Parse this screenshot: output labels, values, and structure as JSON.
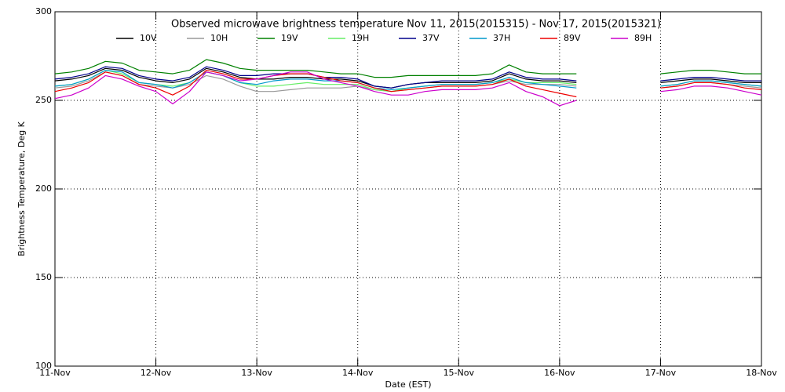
{
  "chart_data": {
    "type": "line",
    "title": "Observed microwave brightness temperature Nov 11, 2015(2015315) - Nov 17, 2015(2015321)",
    "x_label": "Date (EST)",
    "y_label": "Brightness Temperature, Deg K",
    "x": [
      "2015-11-11T00:00",
      "2015-11-11T04:00",
      "2015-11-11T08:00",
      "2015-11-11T12:00",
      "2015-11-11T16:00",
      "2015-11-11T20:00",
      "2015-11-12T00:00",
      "2015-11-12T04:00",
      "2015-11-12T08:00",
      "2015-11-12T12:00",
      "2015-11-12T16:00",
      "2015-11-12T20:00",
      "2015-11-13T00:00",
      "2015-11-13T04:00",
      "2015-11-13T08:00",
      "2015-11-13T12:00",
      "2015-11-13T16:00",
      "2015-11-13T20:00",
      "2015-11-14T00:00",
      "2015-11-14T04:00",
      "2015-11-14T08:00",
      "2015-11-14T12:00",
      "2015-11-14T16:00",
      "2015-11-14T20:00",
      "2015-11-15T00:00",
      "2015-11-15T04:00",
      "2015-11-15T08:00",
      "2015-11-15T12:00",
      "2015-11-15T16:00",
      "2015-11-15T20:00",
      "2015-11-16T00:00",
      "2015-11-16T04:00",
      "2015-11-16T08:00",
      "2015-11-16T12:00",
      "2015-11-16T16:00",
      "2015-11-16T20:00",
      "2015-11-17T00:00",
      "2015-11-17T04:00",
      "2015-11-17T08:00",
      "2015-11-17T12:00",
      "2015-11-17T16:00",
      "2015-11-17T20:00",
      "2015-11-18T00:00"
    ],
    "series": [
      {
        "name": "10V",
        "color": "#000000",
        "values": [
          261,
          262,
          264,
          268,
          267,
          263,
          261,
          260,
          262,
          268,
          266,
          263,
          262,
          262,
          263,
          263,
          262,
          262,
          261,
          258,
          257,
          259,
          260,
          260,
          260,
          260,
          261,
          265,
          262,
          261,
          261,
          260,
          null,
          null,
          null,
          null,
          260,
          261,
          262,
          262,
          261,
          260,
          260
        ]
      },
      {
        "name": "10H",
        "color": "#999999",
        "values": [
          257,
          258,
          261,
          266,
          264,
          259,
          258,
          257,
          259,
          264,
          262,
          258,
          255,
          255,
          256,
          257,
          257,
          257,
          258,
          256,
          255,
          256,
          257,
          258,
          258,
          258,
          259,
          261,
          259,
          259,
          259,
          258,
          null,
          null,
          null,
          null,
          257,
          258,
          260,
          260,
          259,
          258,
          257
        ]
      },
      {
        "name": "19V",
        "color": "#008000",
        "values": [
          265,
          266,
          268,
          272,
          271,
          267,
          266,
          265,
          267,
          273,
          271,
          268,
          267,
          267,
          267,
          267,
          266,
          265,
          265,
          263,
          263,
          264,
          264,
          264,
          264,
          264,
          265,
          270,
          266,
          265,
          265,
          265,
          null,
          null,
          null,
          null,
          265,
          266,
          267,
          267,
          266,
          265,
          265
        ]
      },
      {
        "name": "19H",
        "color": "#66ee66",
        "values": [
          258,
          259,
          262,
          267,
          265,
          260,
          259,
          258,
          260,
          266,
          264,
          260,
          258,
          258,
          259,
          260,
          259,
          259,
          259,
          256,
          255,
          257,
          258,
          259,
          259,
          259,
          260,
          262,
          260,
          260,
          260,
          259,
          null,
          null,
          null,
          null,
          258,
          259,
          261,
          261,
          260,
          259,
          258
        ]
      },
      {
        "name": "37V",
        "color": "#00008b",
        "values": [
          262,
          263,
          265,
          269,
          268,
          264,
          262,
          261,
          263,
          269,
          267,
          264,
          264,
          265,
          265,
          265,
          263,
          263,
          262,
          258,
          257,
          259,
          260,
          261,
          261,
          261,
          262,
          266,
          263,
          262,
          262,
          261,
          null,
          null,
          null,
          null,
          261,
          262,
          263,
          263,
          262,
          261,
          261
        ]
      },
      {
        "name": "37H",
        "color": "#0099cc",
        "values": [
          258,
          259,
          262,
          267,
          266,
          260,
          259,
          257,
          260,
          266,
          264,
          260,
          259,
          261,
          262,
          262,
          261,
          261,
          260,
          257,
          256,
          257,
          258,
          259,
          259,
          259,
          260,
          263,
          260,
          259,
          258,
          257,
          null,
          null,
          null,
          null,
          258,
          259,
          261,
          261,
          260,
          259,
          258
        ]
      },
      {
        "name": "89V",
        "color": "#ee0000",
        "values": [
          255,
          257,
          260,
          266,
          264,
          259,
          257,
          253,
          258,
          267,
          265,
          262,
          262,
          264,
          265,
          265,
          263,
          261,
          260,
          257,
          255,
          256,
          257,
          258,
          258,
          258,
          259,
          262,
          258,
          256,
          254,
          252,
          null,
          null,
          null,
          null,
          257,
          258,
          260,
          260,
          259,
          257,
          256
        ]
      },
      {
        "name": "89H",
        "color": "#cc00cc",
        "values": [
          251,
          253,
          257,
          264,
          262,
          258,
          255,
          248,
          255,
          266,
          264,
          261,
          262,
          264,
          266,
          266,
          262,
          260,
          258,
          255,
          253,
          253,
          255,
          256,
          256,
          256,
          257,
          260,
          255,
          252,
          247,
          250,
          null,
          null,
          null,
          null,
          255,
          256,
          258,
          258,
          257,
          255,
          253
        ]
      }
    ],
    "xlim": [
      "2015-11-11T00:00",
      "2015-11-18T00:00"
    ],
    "xticks": [
      {
        "value": "2015-11-11T00:00",
        "label": "11-Nov"
      },
      {
        "value": "2015-11-12T00:00",
        "label": "12-Nov"
      },
      {
        "value": "2015-11-13T00:00",
        "label": "13-Nov"
      },
      {
        "value": "2015-11-14T00:00",
        "label": "14-Nov"
      },
      {
        "value": "2015-11-15T00:00",
        "label": "15-Nov"
      },
      {
        "value": "2015-11-16T00:00",
        "label": "16-Nov"
      },
      {
        "value": "2015-11-17T00:00",
        "label": "17-Nov"
      },
      {
        "value": "2015-11-18T00:00",
        "label": "18-Nov"
      }
    ],
    "ylim": [
      100,
      300
    ],
    "yticks": [
      100,
      150,
      200,
      250,
      300
    ],
    "grid": true
  }
}
